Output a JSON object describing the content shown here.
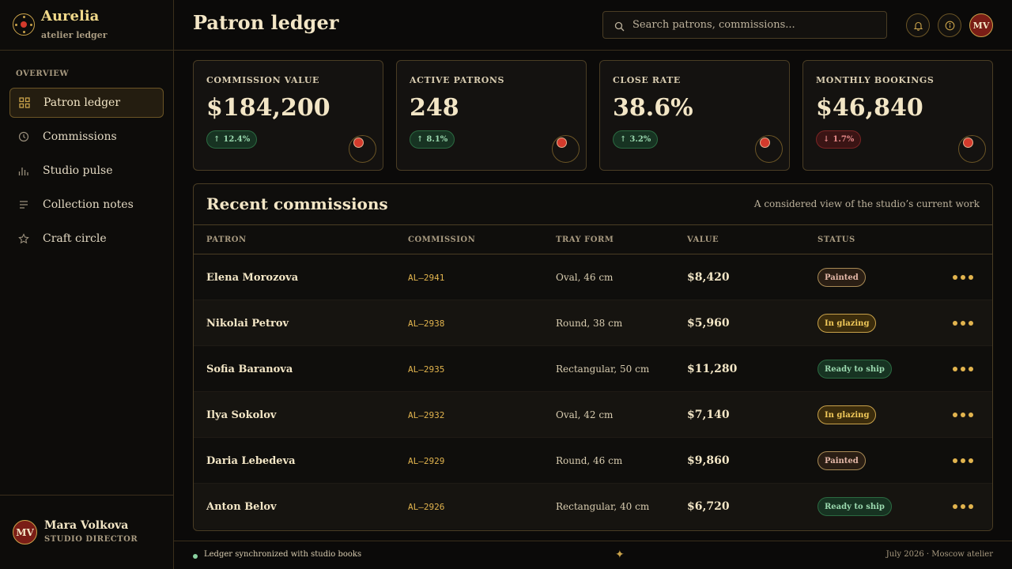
{
  "brand": {
    "name": "Aurelia",
    "subtitle": "atelier ledger"
  },
  "sidebar": {
    "section": "OVERVIEW",
    "items": [
      {
        "label": "Patron ledger",
        "icon": "grid-icon",
        "active": true
      },
      {
        "label": "Commissions",
        "icon": "clock-icon",
        "active": false
      },
      {
        "label": "Studio pulse",
        "icon": "bars-icon",
        "active": false
      },
      {
        "label": "Collection notes",
        "icon": "lines-icon",
        "active": false
      },
      {
        "label": "Craft circle",
        "icon": "star-icon",
        "active": false
      }
    ]
  },
  "user": {
    "initials": "MV",
    "name": "Mara Volkova",
    "role": "STUDIO DIRECTOR"
  },
  "header": {
    "title": "Patron ledger",
    "search_placeholder": "Search patrons, commissions...",
    "avatar_initials": "MV"
  },
  "kpis": [
    {
      "label": "COMMISSION VALUE",
      "value": "$184,200",
      "change": "12.4%",
      "direction": "up"
    },
    {
      "label": "ACTIVE PATRONS",
      "value": "248",
      "change": "8.1%",
      "direction": "up"
    },
    {
      "label": "CLOSE RATE",
      "value": "38.6%",
      "change": "3.2%",
      "direction": "up"
    },
    {
      "label": "MONTHLY BOOKINGS",
      "value": "$46,840",
      "change": "1.7%",
      "direction": "down"
    }
  ],
  "table": {
    "title": "Recent commissions",
    "subtitle": "A considered view of the studio’s current work",
    "columns": [
      "PATRON",
      "COMMISSION",
      "TRAY FORM",
      "VALUE",
      "STATUS"
    ],
    "rows": [
      {
        "patron": "Elena Morozova",
        "code": "AL–2941",
        "form": "Oval, 46 cm",
        "value": "$8,420",
        "status": "Painted",
        "status_kind": "painted"
      },
      {
        "patron": "Nikolai Petrov",
        "code": "AL–2938",
        "form": "Round, 38 cm",
        "value": "$5,960",
        "status": "In glazing",
        "status_kind": "glazing"
      },
      {
        "patron": "Sofia Baranova",
        "code": "AL–2935",
        "form": "Rectangular, 50 cm",
        "value": "$11,280",
        "status": "Ready to ship",
        "status_kind": "ready"
      },
      {
        "patron": "Ilya Sokolov",
        "code": "AL–2932",
        "form": "Oval, 42 cm",
        "value": "$7,140",
        "status": "In glazing",
        "status_kind": "glazing"
      },
      {
        "patron": "Daria Lebedeva",
        "code": "AL–2929",
        "form": "Round, 46 cm",
        "value": "$9,860",
        "status": "Painted",
        "status_kind": "painted"
      },
      {
        "patron": "Anton Belov",
        "code": "AL–2926",
        "form": "Rectangular, 40 cm",
        "value": "$6,720",
        "status": "Ready to ship",
        "status_kind": "ready"
      }
    ]
  },
  "footer": {
    "sync": "Ledger synchronized with studio books",
    "star": "✦",
    "right": "July 2026 · Moscow atelier"
  },
  "colors": {
    "accent": "#c9a24a",
    "brand_red": "#d33a2c",
    "positive": "#9ad8ae",
    "negative": "#e78a8a"
  }
}
